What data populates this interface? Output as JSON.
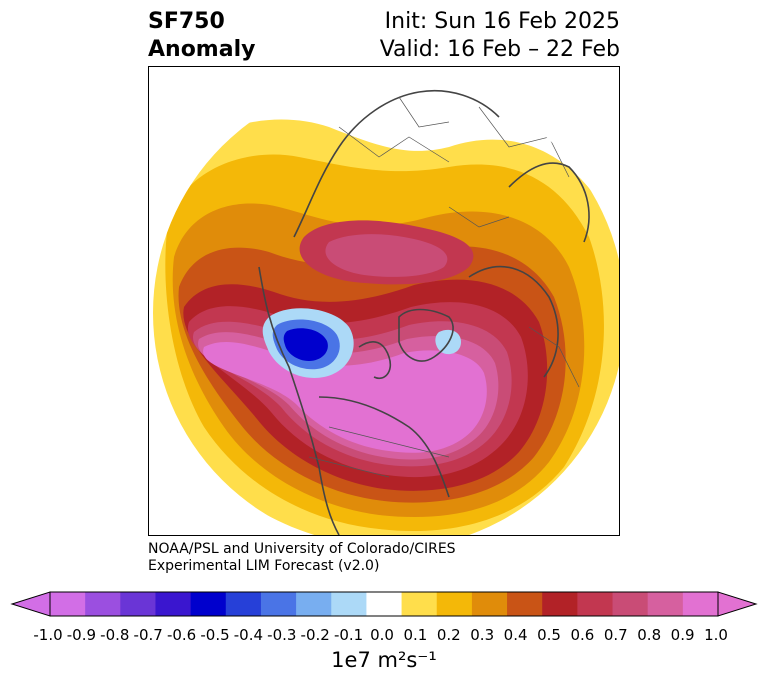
{
  "title": {
    "variable": "SF750",
    "subtitle": "Anomaly",
    "init": "Init: Sun 16 Feb 2025",
    "valid": "Valid: 16 Feb – 22 Feb"
  },
  "credit": {
    "line1": "NOAA/PSL and University of Colorado/CIRES",
    "line2": "Experimental LIM Forecast (v2.0)"
  },
  "colorbar": {
    "units": "1e7 m²s⁻¹",
    "ticks": [
      "-1.0",
      "-0.9",
      "-0.8",
      "-0.7",
      "-0.6",
      "-0.5",
      "-0.4",
      "-0.3",
      "-0.2",
      "-0.1",
      "0.0",
      "0.1",
      "0.2",
      "0.3",
      "0.4",
      "0.5",
      "0.6",
      "0.7",
      "0.8",
      "0.9",
      "1.0"
    ],
    "colors": [
      "#d26ee6",
      "#9b4fe0",
      "#6a35d6",
      "#3a16cf",
      "#0000cd",
      "#2640d8",
      "#4a74e6",
      "#78aef0",
      "#acd9f7",
      "#ffffff",
      "#ffde4b",
      "#f4b808",
      "#e08c0a",
      "#c95416",
      "#b22227",
      "#c23750",
      "#c94c76",
      "#d6609f",
      "#e271d2"
    ]
  },
  "map": {
    "projection": "north-polar-stereographic",
    "coastline_color": "#444444",
    "border_color": "#555555"
  }
}
